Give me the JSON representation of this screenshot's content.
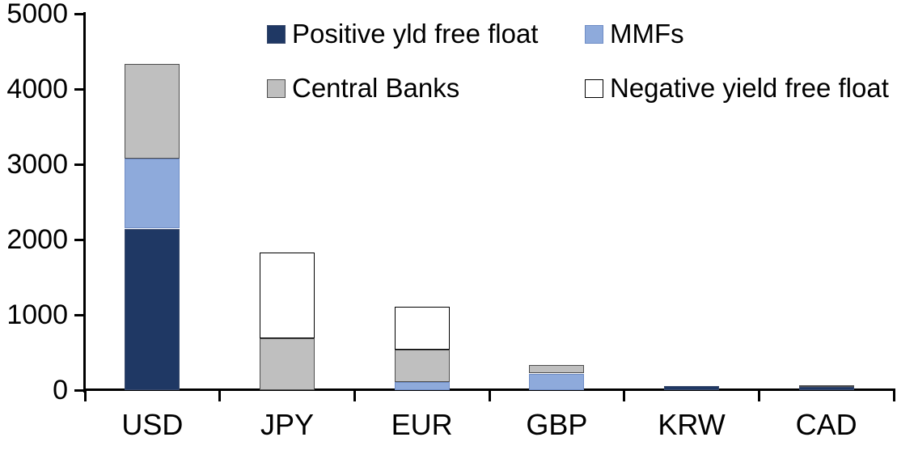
{
  "chart_data": {
    "type": "bar",
    "stacked": true,
    "title": "",
    "xlabel": "",
    "ylabel": "",
    "categories": [
      "USD",
      "JPY",
      "EUR",
      "GBP",
      "KRW",
      "CAD"
    ],
    "series": [
      {
        "name": "Positive yld free float",
        "color": "#1F3864",
        "border_color": "#38496b",
        "values": [
          2140,
          0,
          0,
          0,
          50,
          40
        ]
      },
      {
        "name": "MMFs",
        "color": "#8EAADB",
        "border_color": "#6e8cc5",
        "values": [
          930,
          0,
          110,
          220,
          0,
          0
        ]
      },
      {
        "name": "Central Banks",
        "color": "#BFBFBF",
        "border_color": "#4d4d4d",
        "values": [
          1260,
          690,
          430,
          110,
          0,
          25
        ]
      },
      {
        "name": "Negative yield free float",
        "color": "#FFFFFF",
        "border_color": "#000000",
        "values": [
          0,
          1140,
          570,
          0,
          0,
          0
        ]
      }
    ],
    "ylim": [
      0,
      5000
    ],
    "yticks": [
      0,
      1000,
      2000,
      3000,
      4000,
      5000
    ],
    "grid": false,
    "legend_position": "top",
    "axis_color": "#000000",
    "text_color": "#000000",
    "background_color": "#FFFFFF"
  }
}
